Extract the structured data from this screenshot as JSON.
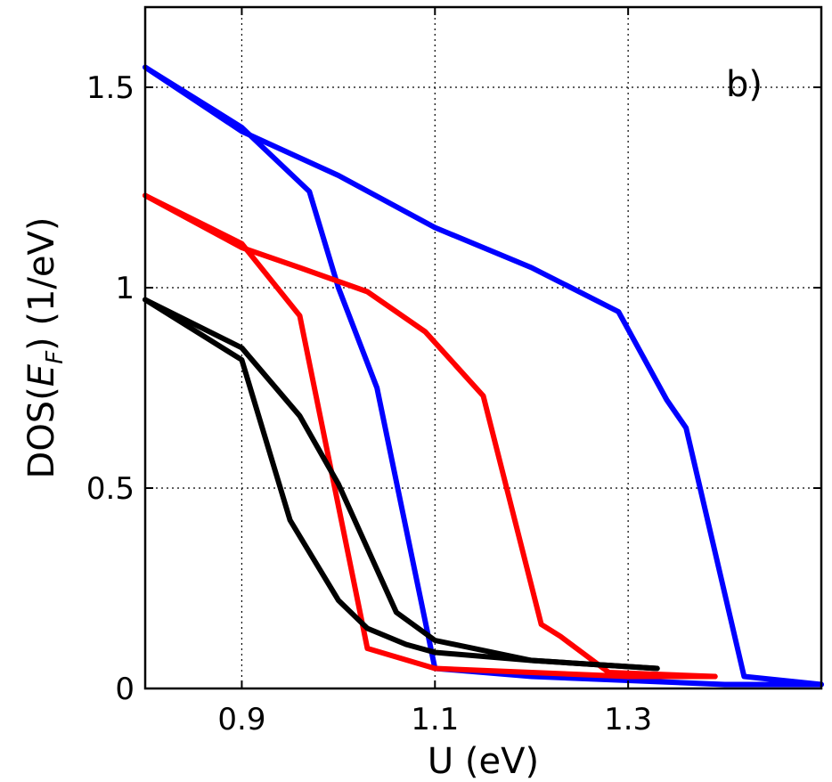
{
  "chart_data": {
    "type": "line",
    "panel_label": "b)",
    "xlabel": "U (eV)",
    "ylabel_prefix": "DOS(",
    "ylabel_var": "E",
    "ylabel_sub": "F",
    "ylabel_suffix": ") (1/eV)",
    "xlim": [
      0.8,
      1.5
    ],
    "ylim": [
      0,
      1.7
    ],
    "xticks": [
      0.9,
      1.1,
      1.3
    ],
    "xtick_labels": [
      "0.9",
      "1.1",
      "1.3"
    ],
    "yticks": [
      0,
      0.5,
      1,
      1.5
    ],
    "ytick_labels": [
      "0",
      "0.5",
      "1",
      "1.5"
    ],
    "grid": true,
    "series": [
      {
        "color": "#0000ff",
        "x": [
          0.8,
          0.9,
          1.0,
          1.1,
          1.2,
          1.29,
          1.34,
          1.36,
          1.42,
          1.5
        ],
        "y": [
          1.55,
          1.39,
          1.28,
          1.15,
          1.05,
          0.94,
          0.72,
          0.65,
          0.03,
          0.01
        ]
      },
      {
        "color": "#0000ff",
        "x": [
          0.8,
          0.9,
          0.97,
          1.0,
          1.04,
          1.1,
          1.2,
          1.3,
          1.4,
          1.5
        ],
        "y": [
          1.55,
          1.4,
          1.24,
          1.0,
          0.75,
          0.05,
          0.03,
          0.02,
          0.01,
          0.01
        ]
      },
      {
        "color": "#ff0000",
        "x": [
          0.8,
          0.9,
          0.96,
          1.03,
          1.09,
          1.15,
          1.21,
          1.23,
          1.28,
          1.39
        ],
        "y": [
          1.23,
          1.1,
          1.05,
          0.99,
          0.89,
          0.73,
          0.16,
          0.13,
          0.04,
          0.03
        ]
      },
      {
        "color": "#ff0000",
        "x": [
          0.8,
          0.9,
          0.96,
          1.03,
          1.1,
          1.2,
          1.3,
          1.39
        ],
        "y": [
          1.23,
          1.11,
          0.93,
          0.1,
          0.05,
          0.04,
          0.03,
          0.03
        ]
      },
      {
        "color": "#000000",
        "x": [
          0.8,
          0.9,
          0.96,
          1.0,
          1.06,
          1.1,
          1.2,
          1.33
        ],
        "y": [
          0.97,
          0.85,
          0.68,
          0.51,
          0.19,
          0.12,
          0.07,
          0.05
        ]
      },
      {
        "color": "#000000",
        "x": [
          0.8,
          0.9,
          0.95,
          1.0,
          1.03,
          1.07,
          1.1,
          1.2,
          1.33
        ],
        "y": [
          0.97,
          0.82,
          0.42,
          0.22,
          0.15,
          0.11,
          0.09,
          0.07,
          0.05
        ]
      }
    ]
  }
}
